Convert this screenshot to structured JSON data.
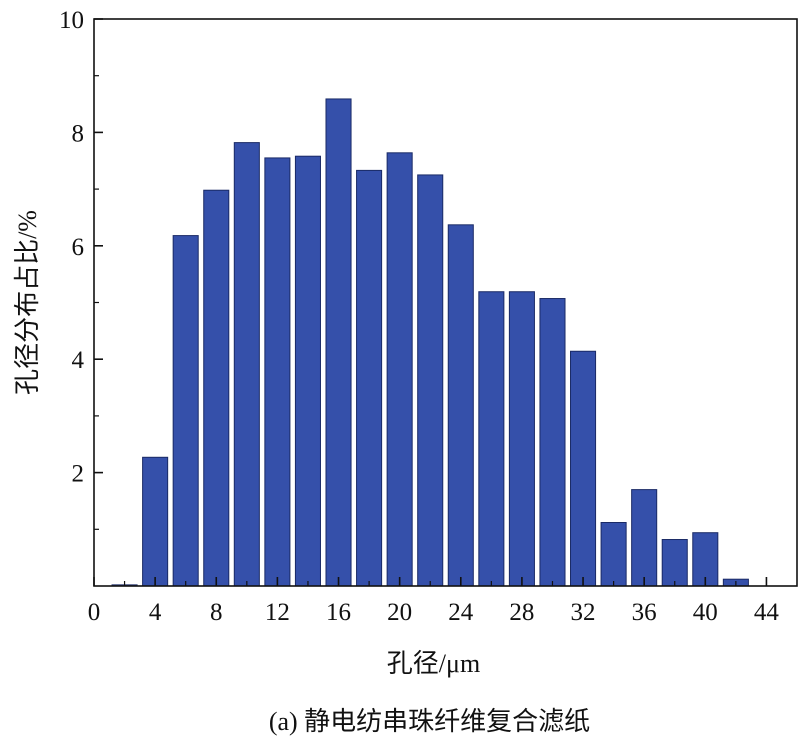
{
  "chart_data": {
    "type": "bar",
    "caption": "(a) 静电纺串珠纤维复合滤纸",
    "xlabel": "孔径/μm",
    "ylabel": "孔径分布占比/%",
    "x": [
      2,
      4,
      6,
      8,
      10,
      12,
      14,
      16,
      18,
      20,
      22,
      24,
      26,
      28,
      30,
      32,
      34,
      36,
      38,
      40,
      42
    ],
    "values": [
      0.02,
      2.27,
      6.18,
      6.98,
      7.82,
      7.55,
      7.58,
      8.59,
      7.33,
      7.64,
      7.25,
      6.37,
      5.19,
      5.19,
      5.07,
      4.14,
      1.12,
      1.7,
      0.82,
      0.94,
      0.12
    ],
    "xlim": [
      0,
      46
    ],
    "ylim": [
      0,
      10
    ],
    "xticks": [
      0,
      4,
      8,
      12,
      16,
      20,
      24,
      28,
      32,
      36,
      40,
      44
    ],
    "yticks": [
      2,
      4,
      6,
      8,
      10
    ],
    "bar_color": "#3550aa",
    "bar_edge_color": "#1a2a66",
    "grid": false,
    "legend": "none"
  }
}
